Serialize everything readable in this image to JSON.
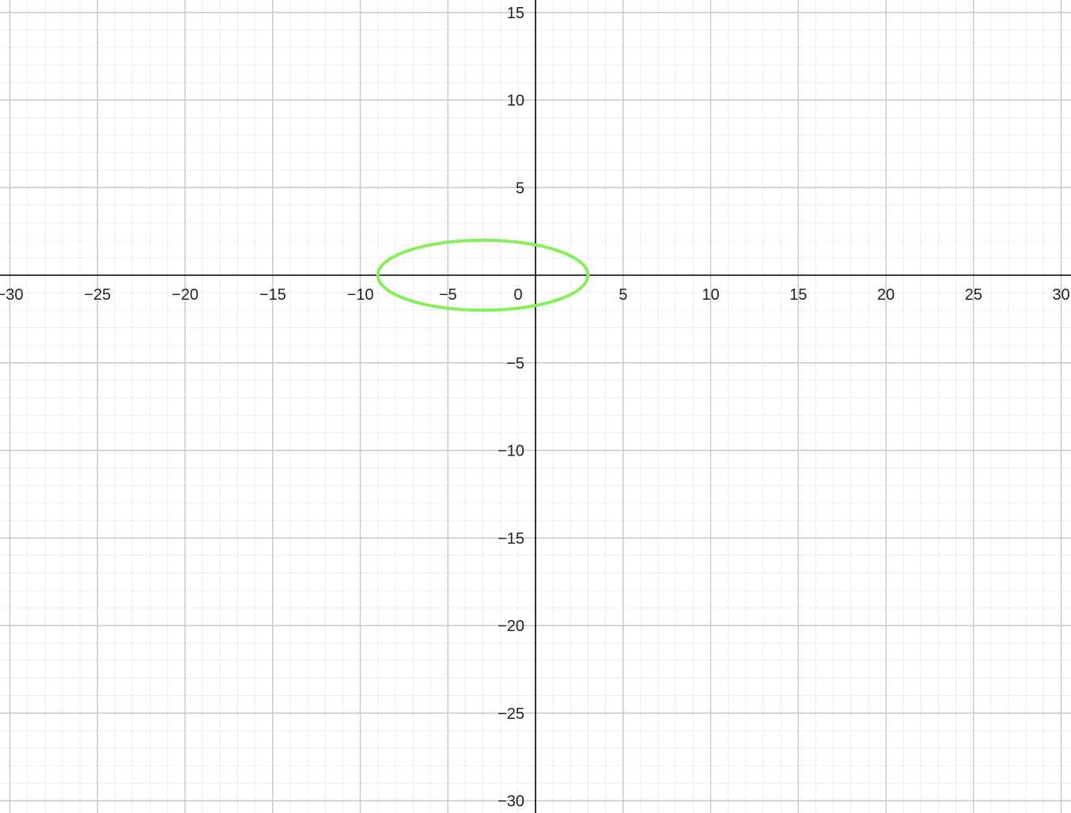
{
  "chart_data": {
    "type": "line",
    "title": "",
    "xlabel": "",
    "ylabel": "",
    "xlim": [
      -30.6,
      30.6
    ],
    "ylim": [
      -30.6,
      15.8
    ],
    "x_ticks": [
      -30,
      -25,
      -20,
      -15,
      -10,
      -5,
      0,
      5,
      10,
      15,
      20,
      25,
      30
    ],
    "y_ticks": [
      -30,
      -25,
      -20,
      -15,
      -10,
      -5,
      5,
      10,
      15
    ],
    "x_tick_labels": [
      "−30",
      "−25",
      "−20",
      "−15",
      "−10",
      "−5",
      "0",
      "5",
      "10",
      "15",
      "20",
      "25",
      "30"
    ],
    "y_tick_labels": [
      "−30",
      "−25",
      "−20",
      "−15",
      "−10",
      "−5",
      "5",
      "10",
      "15"
    ],
    "grid": true,
    "minor_grid_step": 1,
    "major_grid_step": 5,
    "series": [
      {
        "shape": "ellipse",
        "center": [
          -3,
          0
        ],
        "radius_x": 6,
        "radius_y": 2,
        "color": "#86ef5c"
      }
    ]
  },
  "colors": {
    "axis": "#000000",
    "major_grid": "#c8c8c8",
    "minor_grid": "#ececec"
  }
}
